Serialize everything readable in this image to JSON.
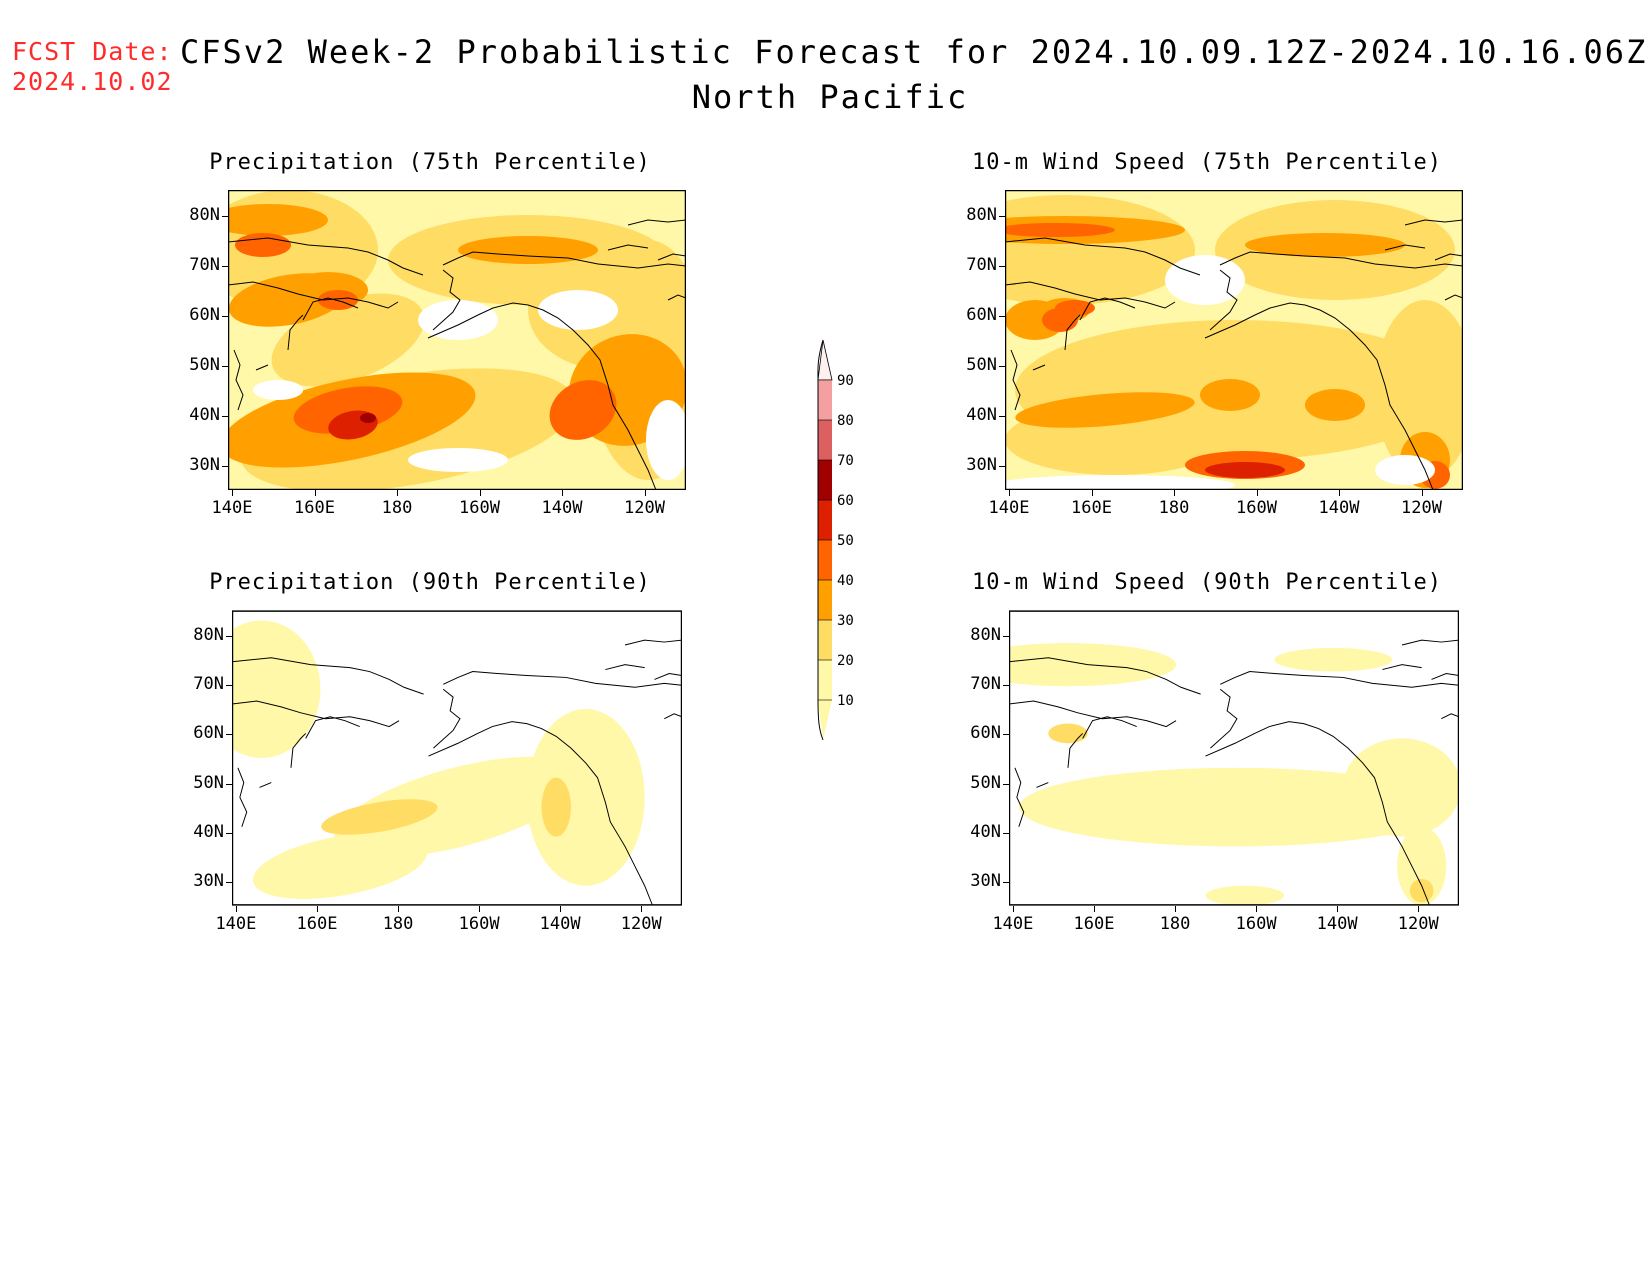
{
  "header": {
    "fcst_date_label": "FCST Date:",
    "fcst_date_value": "2024.10.02",
    "title": "CFSv2 Week-2 Probabilistic Forecast for 2024.10.09.12Z-2024.10.16.06Z",
    "subtitle": "North Pacific"
  },
  "axes": {
    "lat_labels": [
      "80N",
      "70N",
      "60N",
      "50N",
      "40N",
      "30N"
    ],
    "lon_labels": [
      "140E",
      "160E",
      "180",
      "160W",
      "140W",
      "120W"
    ]
  },
  "panels": [
    {
      "title": "Precipitation (75th Percentile)"
    },
    {
      "title": "10-m Wind Speed (75th Percentile)"
    },
    {
      "title": "Precipitation (90th Percentile)"
    },
    {
      "title": "10-m Wind Speed (90th Percentile)"
    }
  ],
  "colorbar": {
    "levels": [
      "90",
      "80",
      "70",
      "60",
      "50",
      "40",
      "30",
      "20",
      "10"
    ],
    "colors": [
      "#fff0f0",
      "#f4a0a0",
      "#dd6060",
      "#a00000",
      "#dd2000",
      "#ff6400",
      "#ffa000",
      "#ffdc64",
      "#fff8a8"
    ]
  },
  "palette": {
    "c10": "#fff8a8",
    "c20": "#ffdc64",
    "c30": "#ffa000",
    "c40": "#ff6400",
    "c50": "#dd2000",
    "c60": "#a00000",
    "coast": "#000000",
    "fcst_text": "#ff2a2a"
  }
}
